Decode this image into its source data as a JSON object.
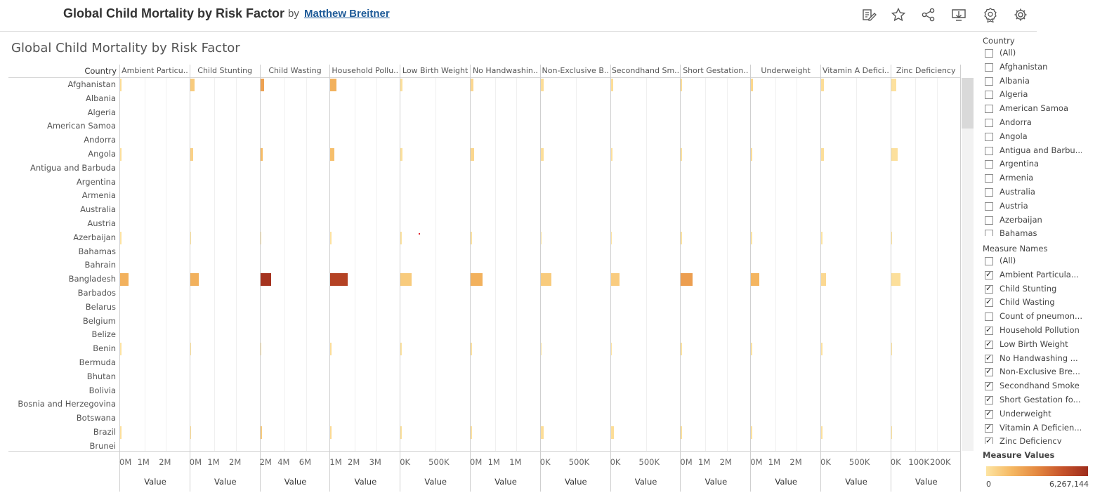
{
  "header": {
    "title": "Global Child Mortality by Risk Factor",
    "by": "by",
    "author": "Matthew Breitner",
    "icons": [
      "pen-icon",
      "star-icon",
      "share-icon",
      "download-icon",
      "badge-icon",
      "gear-icon"
    ]
  },
  "viz": {
    "title": "Global Child Mortality by Risk Factor",
    "row_header": "Country",
    "axis_title": "Value",
    "columns": [
      {
        "label": "Ambient Particu..",
        "ticks": [
          "0M",
          "1M",
          "2M"
        ],
        "max": 2400000
      },
      {
        "label": "Child Stunting",
        "ticks": [
          "0M",
          "1M",
          "2M"
        ],
        "max": 2400000
      },
      {
        "label": "Child Wasting",
        "ticks": [
          "2M",
          "4M",
          "6M"
        ],
        "max": 6300000
      },
      {
        "label": "Household Pollu..",
        "ticks": [
          "1M",
          "2M",
          "3M"
        ],
        "max": 3600000
      },
      {
        "label": "Low Birth Weight",
        "ticks": [
          "0K",
          "500K"
        ],
        "max": 900000
      },
      {
        "label": "No Handwashin..",
        "ticks": [
          "0M",
          "1M",
          "1M"
        ],
        "max": 1700000
      },
      {
        "label": "Non-Exclusive B..",
        "ticks": [
          "0K",
          "500K"
        ],
        "max": 950000
      },
      {
        "label": "Secondhand Sm..",
        "ticks": [
          "0K",
          "500K"
        ],
        "max": 1100000
      },
      {
        "label": "Short Gestation..",
        "ticks": [
          "0M",
          "1M",
          "2M"
        ],
        "max": 2400000
      },
      {
        "label": "Underweight",
        "ticks": [
          "0M",
          "1M",
          "2M"
        ],
        "max": 2400000
      },
      {
        "label": "Vitamin A Defici..",
        "ticks": [
          "0K",
          "500K"
        ],
        "max": 950000
      },
      {
        "label": "Zinc Deficiency",
        "ticks": [
          "0K",
          "100K",
          "200K"
        ],
        "max": 230000
      }
    ],
    "rows": [
      "Afghanistan",
      "Albania",
      "Algeria",
      "American Samoa",
      "Andorra",
      "Angola",
      "Antigua and Barbuda",
      "Argentina",
      "Armenia",
      "Australia",
      "Austria",
      "Azerbaijan",
      "Bahamas",
      "Bahrain",
      "Bangladesh",
      "Barbados",
      "Belarus",
      "Belgium",
      "Belize",
      "Benin",
      "Bermuda",
      "Bhutan",
      "Bolivia",
      "Bosnia and Herzegovina",
      "Botswana",
      "Brazil",
      "Brunei"
    ]
  },
  "chart_data": {
    "type": "bar",
    "orientation": "horizontal",
    "categories": [
      "Afghanistan",
      "Albania",
      "Algeria",
      "American Samoa",
      "Andorra",
      "Angola",
      "Antigua and Barbuda",
      "Argentina",
      "Armenia",
      "Australia",
      "Austria",
      "Azerbaijan",
      "Bahamas",
      "Bahrain",
      "Bangladesh",
      "Barbados",
      "Belarus",
      "Belgium",
      "Belize",
      "Benin",
      "Bermuda",
      "Bhutan",
      "Bolivia",
      "Bosnia and Herzegovina",
      "Botswana",
      "Brazil",
      "Brunei"
    ],
    "title": "Global Child Mortality by Risk Factor",
    "xlabel": "Value",
    "ylabel": "Country",
    "series": [
      {
        "name": "Ambient Particu..",
        "values": [
          50000,
          0,
          0,
          0,
          0,
          30000,
          0,
          0,
          0,
          0,
          0,
          5000,
          0,
          0,
          300000,
          0,
          0,
          0,
          0,
          5000,
          0,
          0,
          0,
          0,
          0,
          30000,
          0
        ]
      },
      {
        "name": "Child Stunting",
        "values": [
          150000,
          0,
          0,
          0,
          0,
          110000,
          0,
          0,
          0,
          0,
          0,
          5000,
          0,
          0,
          300000,
          0,
          0,
          0,
          0,
          10000,
          0,
          0,
          0,
          0,
          0,
          40000,
          0
        ]
      },
      {
        "name": "Child Wasting",
        "values": [
          380000,
          0,
          0,
          0,
          0,
          240000,
          0,
          0,
          0,
          0,
          0,
          10000,
          0,
          0,
          1000000,
          0,
          0,
          0,
          0,
          20000,
          0,
          0,
          0,
          0,
          0,
          150000,
          0
        ]
      },
      {
        "name": "Household Pollu..",
        "values": [
          300000,
          0,
          0,
          0,
          0,
          220000,
          0,
          0,
          0,
          0,
          0,
          10000,
          0,
          0,
          900000,
          0,
          0,
          0,
          0,
          40000,
          0,
          0,
          0,
          0,
          0,
          60000,
          0
        ]
      },
      {
        "name": "Low Birth Weight",
        "values": [
          30000,
          0,
          0,
          0,
          0,
          25000,
          0,
          0,
          0,
          0,
          0,
          5000,
          0,
          0,
          150000,
          0,
          0,
          0,
          0,
          5000,
          0,
          0,
          0,
          0,
          0,
          20000,
          0
        ]
      },
      {
        "name": "No Handwashin..",
        "values": [
          75000,
          0,
          0,
          0,
          0,
          80000,
          0,
          0,
          0,
          0,
          0,
          5000,
          0,
          0,
          300000,
          0,
          0,
          0,
          0,
          10000,
          0,
          0,
          0,
          0,
          0,
          10000,
          0
        ]
      },
      {
        "name": "Non-Exclusive B..",
        "values": [
          42000,
          0,
          0,
          0,
          0,
          36000,
          0,
          0,
          0,
          0,
          0,
          7000,
          0,
          0,
          150000,
          0,
          0,
          0,
          0,
          5000,
          0,
          0,
          0,
          0,
          0,
          42000,
          0
        ]
      },
      {
        "name": "Secondhand Sm..",
        "values": [
          40000,
          0,
          0,
          0,
          0,
          30000,
          0,
          0,
          0,
          0,
          0,
          5000,
          0,
          0,
          140000,
          0,
          0,
          0,
          0,
          5000,
          0,
          0,
          0,
          0,
          0,
          44000,
          0
        ]
      },
      {
        "name": "Short Gestation..",
        "values": [
          40000,
          0,
          0,
          0,
          0,
          20000,
          0,
          0,
          0,
          0,
          0,
          5000,
          0,
          0,
          400000,
          0,
          0,
          0,
          0,
          5000,
          0,
          0,
          0,
          0,
          0,
          20000,
          0
        ]
      },
      {
        "name": "Underweight",
        "values": [
          80000,
          0,
          0,
          0,
          0,
          50000,
          0,
          0,
          0,
          0,
          0,
          5000,
          0,
          0,
          280000,
          0,
          0,
          0,
          0,
          10000,
          0,
          0,
          0,
          0,
          0,
          20000,
          0
        ]
      },
      {
        "name": "Vitamin A Defici..",
        "values": [
          40000,
          0,
          0,
          0,
          0,
          38000,
          0,
          0,
          0,
          0,
          0,
          3000,
          0,
          0,
          70000,
          0,
          0,
          0,
          0,
          15000,
          0,
          0,
          0,
          0,
          0,
          22000,
          0
        ]
      },
      {
        "name": "Zinc Deficiency",
        "values": [
          16000,
          0,
          0,
          0,
          0,
          22000,
          0,
          0,
          0,
          0,
          0,
          500,
          0,
          0,
          30000,
          0,
          0,
          0,
          0,
          500,
          0,
          0,
          0,
          0,
          0,
          2500,
          0
        ]
      }
    ],
    "color_scale": {
      "min": 0,
      "max": 6267144,
      "colors": [
        "#fde4a2",
        "#f5b862",
        "#e48840",
        "#c6532b",
        "#9e2d1c"
      ]
    },
    "grid": true,
    "legend": "right"
  },
  "filters": {
    "country": {
      "title": "Country",
      "items": [
        {
          "label": "(All)",
          "checked": false
        },
        {
          "label": "Afghanistan",
          "checked": false
        },
        {
          "label": "Albania",
          "checked": false
        },
        {
          "label": "Algeria",
          "checked": false
        },
        {
          "label": "American Samoa",
          "checked": false
        },
        {
          "label": "Andorra",
          "checked": false
        },
        {
          "label": "Angola",
          "checked": false
        },
        {
          "label": "Antigua and Barbu...",
          "checked": false
        },
        {
          "label": "Argentina",
          "checked": false
        },
        {
          "label": "Armenia",
          "checked": false
        },
        {
          "label": "Australia",
          "checked": false
        },
        {
          "label": "Austria",
          "checked": false
        },
        {
          "label": "Azerbaijan",
          "checked": false
        },
        {
          "label": "Bahamas",
          "checked": false
        }
      ]
    },
    "measure": {
      "title": "Measure Names",
      "items": [
        {
          "label": "(All)",
          "checked": false
        },
        {
          "label": "Ambient Particula...",
          "checked": true
        },
        {
          "label": "Child Stunting",
          "checked": true
        },
        {
          "label": "Child Wasting",
          "checked": true
        },
        {
          "label": "Count of pneumon...",
          "checked": false
        },
        {
          "label": "Household Pollution",
          "checked": true
        },
        {
          "label": "Low Birth Weight",
          "checked": true
        },
        {
          "label": "No Handwashing ...",
          "checked": true
        },
        {
          "label": "Non-Exclusive Bre...",
          "checked": true
        },
        {
          "label": "Secondhand Smoke",
          "checked": true
        },
        {
          "label": "Short Gestation fo...",
          "checked": true
        },
        {
          "label": "Underweight",
          "checked": true
        },
        {
          "label": "Vitamin A Deficien...",
          "checked": true
        },
        {
          "label": "Zinc Deficiency",
          "checked": true
        }
      ]
    }
  },
  "legend": {
    "title": "Measure Values",
    "min_label": "0",
    "max_label": "6,267,144"
  }
}
